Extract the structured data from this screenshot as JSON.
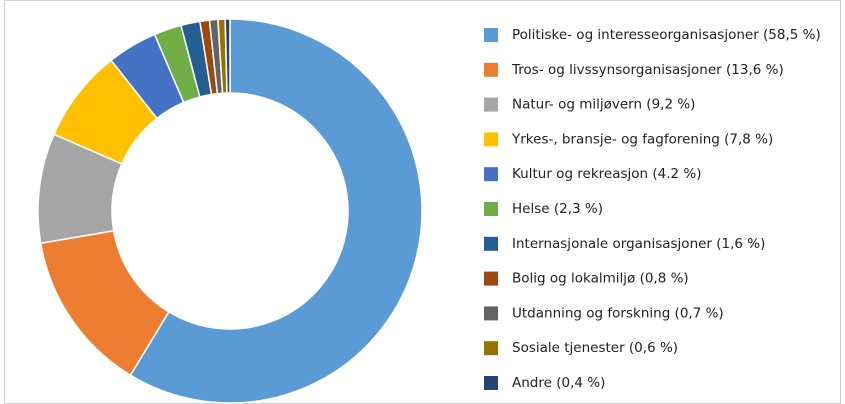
{
  "chart_data": {
    "type": "pie",
    "categories": [
      "Politiske- og interesseorganisasjoner (58,5 %)",
      "Tros- og livssynsorganisasjoner (13,6 %)",
      "Natur- og miljøvern (9,2 %)",
      "Yrkes-, bransje- og fagforening (7,8 %)",
      "Kultur og rekreasjon (4.2 %)",
      "Helse (2,3 %)",
      "Internasjonale organisasjoner (1,6 %)",
      "Bolig og lokalmiljø (0,8 %)",
      "Utdanning og forskning (0,7 %)",
      "Sosiale tjenester (0,6 %)",
      "Andre (0,4 %)"
    ],
    "values": [
      58.5,
      13.6,
      9.2,
      7.8,
      4.2,
      2.3,
      1.6,
      0.8,
      0.7,
      0.6,
      0.4
    ],
    "colors": [
      "#5b9bd5",
      "#ed7d31",
      "#a5a5a5",
      "#ffc000",
      "#4472c4",
      "#70ad47",
      "#255e91",
      "#9e480e",
      "#636363",
      "#997300",
      "#264478"
    ],
    "legend": "right"
  }
}
